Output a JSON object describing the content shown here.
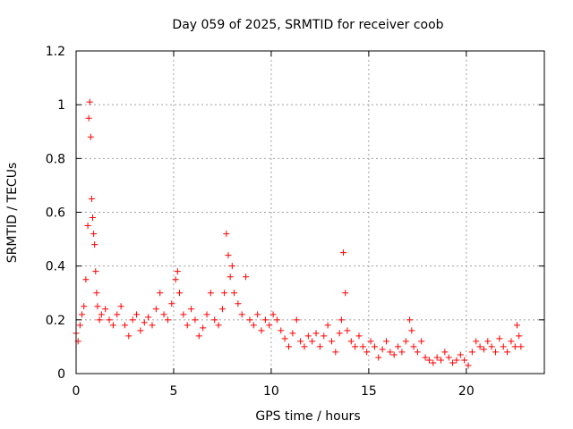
{
  "chart_data": {
    "type": "scatter",
    "title": "Day 059 of 2025, SRMTID for receiver coob",
    "xlabel": "GPS time / hours",
    "ylabel": "SRMTID / TECUs",
    "xlim": [
      0,
      24
    ],
    "ylim": [
      0,
      1.2
    ],
    "xticks": [
      0,
      5,
      10,
      15,
      20
    ],
    "xtick_labels": [
      "0",
      "5",
      "10",
      "15",
      "20"
    ],
    "yticks": [
      0,
      0.2,
      0.4,
      0.6,
      0.8,
      1.0,
      1.2
    ],
    "ytick_labels": [
      "0",
      "0.2",
      "0.4",
      "0.6",
      "0.8",
      "1",
      "1.2"
    ],
    "grid": true,
    "marker": "+",
    "series": [
      {
        "name": "SRMTID",
        "color": "#ff0000",
        "x": [
          0.0,
          0.1,
          0.2,
          0.3,
          0.4,
          0.5,
          0.6,
          0.65,
          0.7,
          0.75,
          0.8,
          0.85,
          0.9,
          0.95,
          1.0,
          1.05,
          1.1,
          1.2,
          1.3,
          1.5,
          1.7,
          1.9,
          2.1,
          2.3,
          2.5,
          2.7,
          2.9,
          3.1,
          3.3,
          3.5,
          3.7,
          3.9,
          4.1,
          4.3,
          4.5,
          4.7,
          4.9,
          5.1,
          5.2,
          5.3,
          5.5,
          5.7,
          5.9,
          6.1,
          6.3,
          6.5,
          6.7,
          6.9,
          7.1,
          7.3,
          7.5,
          7.6,
          7.7,
          7.8,
          7.9,
          8.0,
          8.1,
          8.3,
          8.5,
          8.7,
          8.9,
          9.1,
          9.3,
          9.5,
          9.7,
          9.9,
          10.1,
          10.3,
          10.5,
          10.7,
          10.9,
          11.1,
          11.3,
          11.5,
          11.7,
          11.9,
          12.1,
          12.3,
          12.5,
          12.7,
          12.9,
          13.1,
          13.3,
          13.5,
          13.6,
          13.7,
          13.8,
          13.9,
          14.1,
          14.3,
          14.5,
          14.7,
          14.9,
          15.1,
          15.3,
          15.5,
          15.7,
          15.9,
          16.1,
          16.3,
          16.5,
          16.7,
          16.9,
          17.1,
          17.2,
          17.3,
          17.5,
          17.7,
          17.9,
          18.1,
          18.3,
          18.5,
          18.7,
          18.9,
          19.1,
          19.3,
          19.5,
          19.7,
          19.9,
          20.1,
          20.3,
          20.5,
          20.7,
          20.9,
          21.1,
          21.3,
          21.5,
          21.7,
          21.9,
          22.1,
          22.3,
          22.5,
          22.6,
          22.7,
          22.8
        ],
        "y": [
          0.15,
          0.12,
          0.18,
          0.22,
          0.25,
          0.35,
          0.55,
          0.95,
          1.01,
          0.88,
          0.65,
          0.58,
          0.52,
          0.48,
          0.38,
          0.3,
          0.25,
          0.2,
          0.22,
          0.24,
          0.2,
          0.18,
          0.22,
          0.25,
          0.18,
          0.14,
          0.2,
          0.22,
          0.16,
          0.19,
          0.21,
          0.18,
          0.24,
          0.3,
          0.22,
          0.2,
          0.26,
          0.35,
          0.38,
          0.3,
          0.22,
          0.18,
          0.24,
          0.2,
          0.14,
          0.17,
          0.22,
          0.3,
          0.2,
          0.18,
          0.24,
          0.3,
          0.52,
          0.44,
          0.36,
          0.4,
          0.3,
          0.26,
          0.22,
          0.36,
          0.2,
          0.18,
          0.22,
          0.16,
          0.2,
          0.18,
          0.22,
          0.2,
          0.16,
          0.13,
          0.1,
          0.15,
          0.2,
          0.12,
          0.1,
          0.14,
          0.12,
          0.15,
          0.1,
          0.14,
          0.18,
          0.12,
          0.08,
          0.15,
          0.2,
          0.45,
          0.3,
          0.16,
          0.12,
          0.1,
          0.14,
          0.1,
          0.08,
          0.12,
          0.1,
          0.06,
          0.09,
          0.12,
          0.08,
          0.07,
          0.1,
          0.08,
          0.12,
          0.2,
          0.16,
          0.1,
          0.08,
          0.12,
          0.06,
          0.05,
          0.04,
          0.06,
          0.05,
          0.08,
          0.06,
          0.04,
          0.05,
          0.07,
          0.05,
          0.03,
          0.08,
          0.12,
          0.1,
          0.09,
          0.12,
          0.1,
          0.08,
          0.13,
          0.1,
          0.08,
          0.12,
          0.1,
          0.18,
          0.14,
          0.1
        ]
      }
    ]
  }
}
